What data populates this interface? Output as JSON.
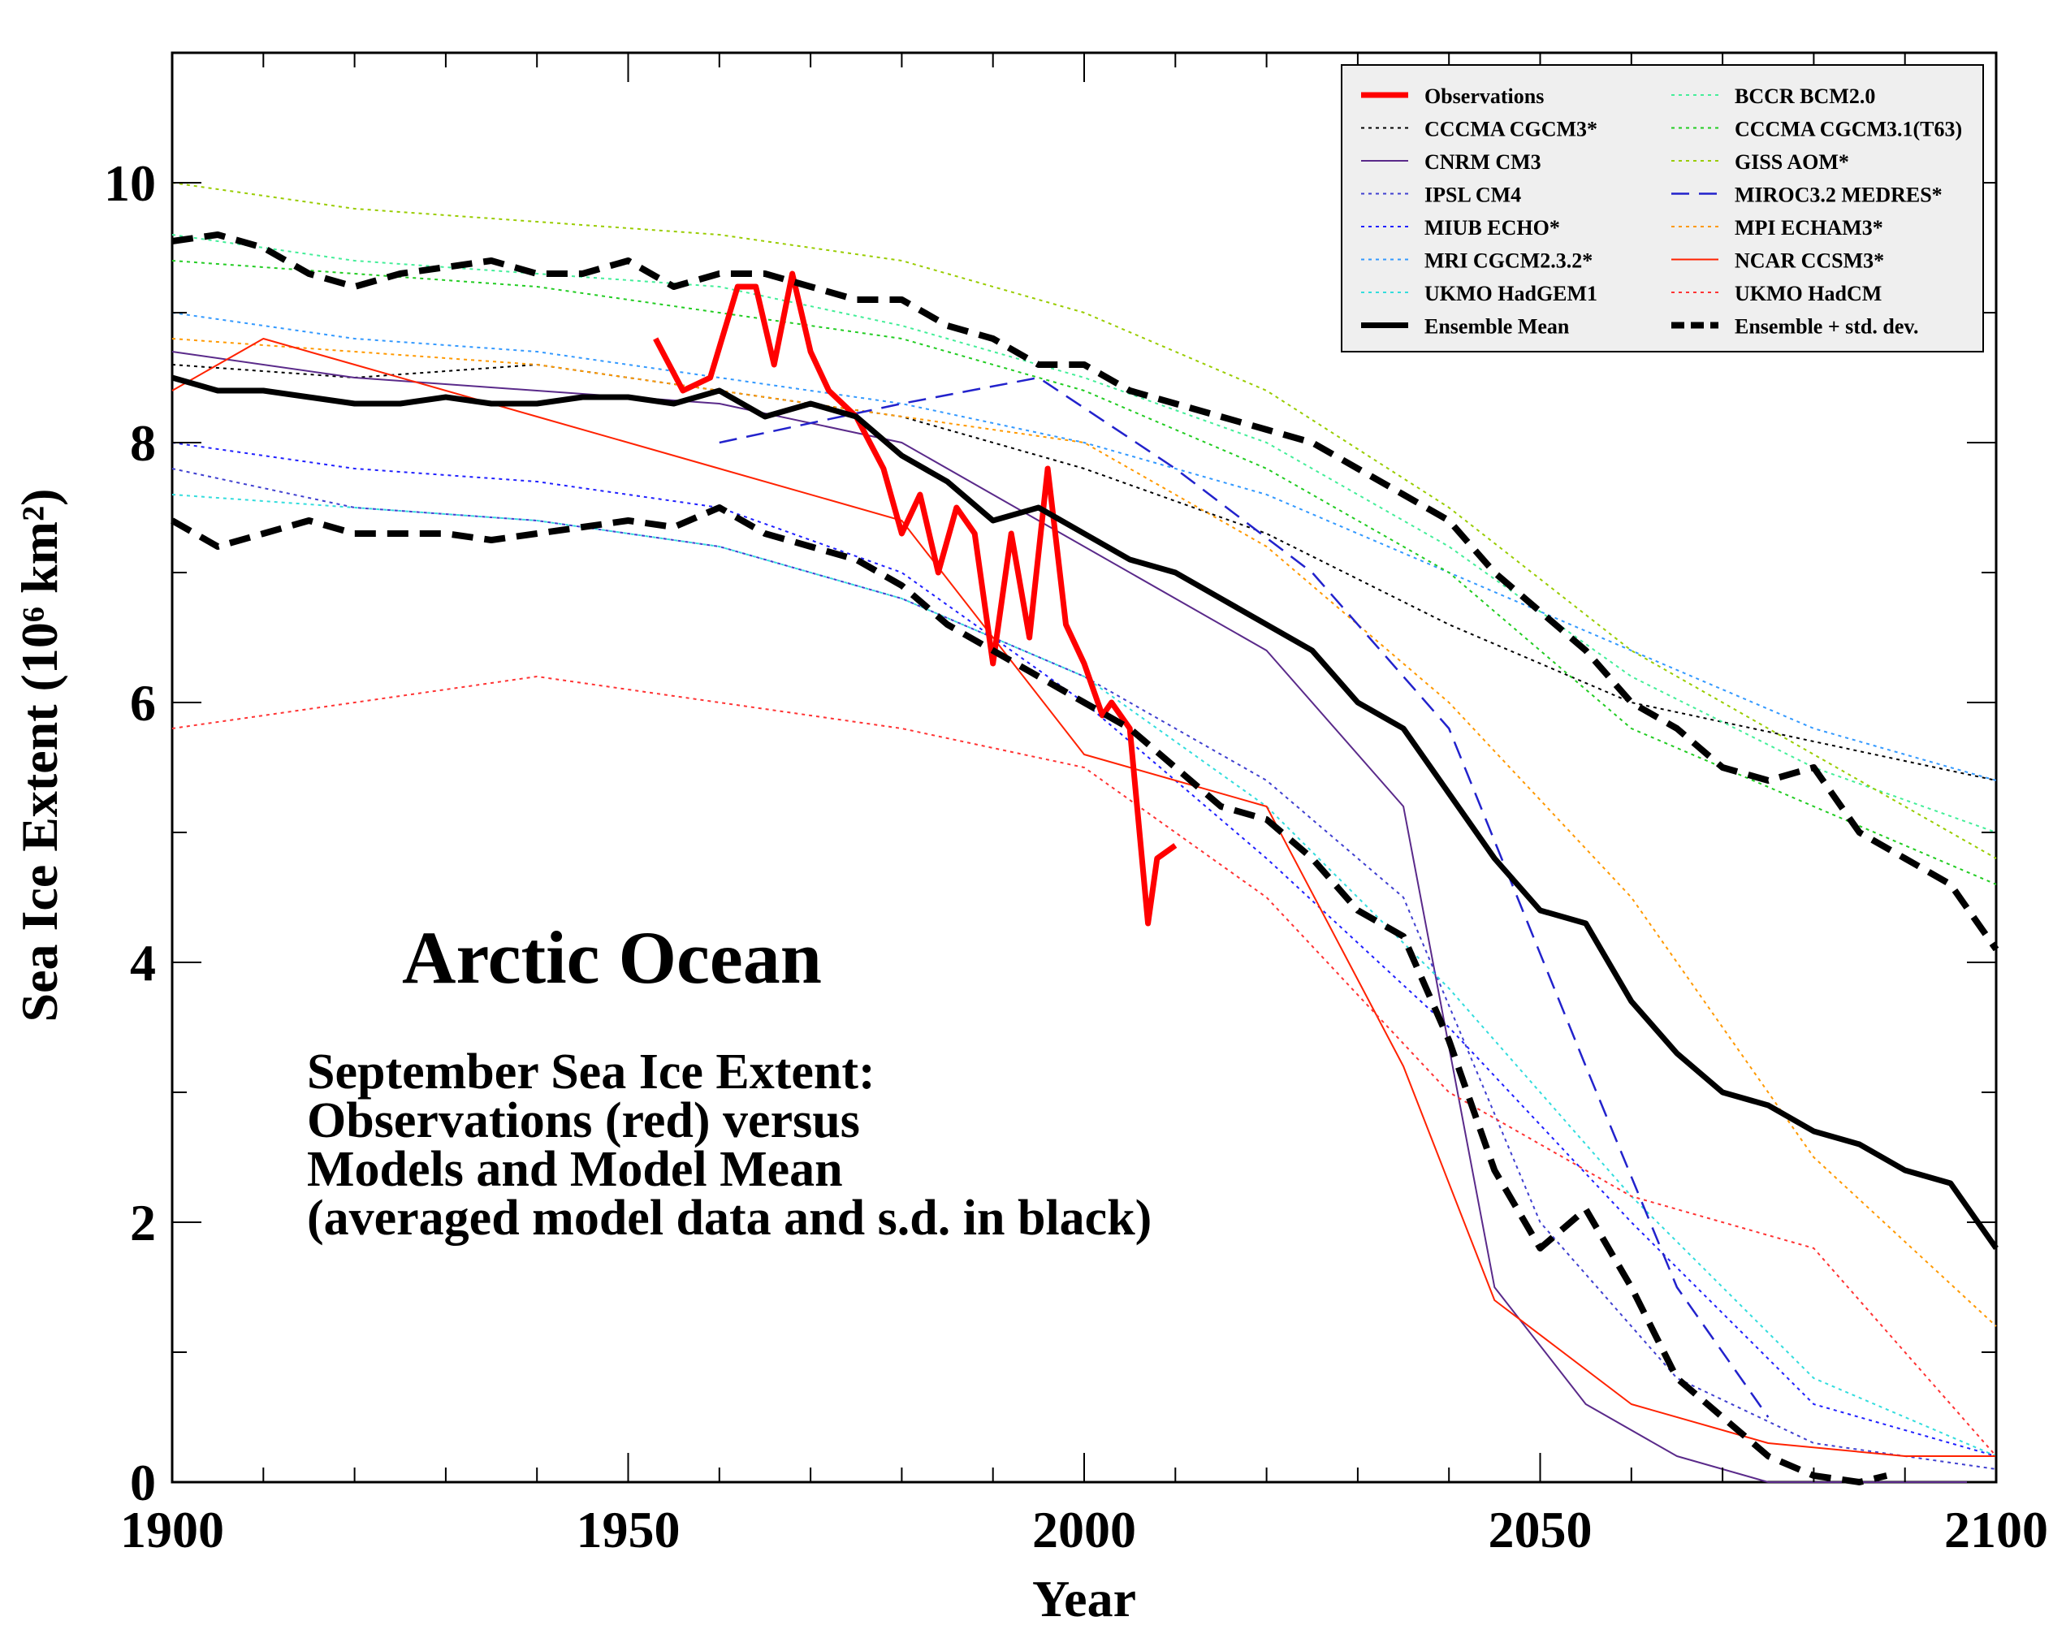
{
  "chart_data": {
    "type": "line",
    "title": "Arctic Ocean",
    "annotation_lines": [
      "September Sea Ice Extent:",
      "Observations (red) versus",
      "Models and Model Mean",
      "(averaged model data and s.d. in black)"
    ],
    "xlabel": "Year",
    "ylabel": "Sea Ice Extent (10⁶ km²)",
    "xlim": [
      1900,
      2100
    ],
    "ylim": [
      0,
      11
    ],
    "x_ticks": [
      1900,
      1950,
      2000,
      2050,
      2100
    ],
    "x_tick_labels": [
      "1900",
      "1950",
      "2000",
      "2050",
      "2100"
    ],
    "y_ticks": [
      0,
      2,
      4,
      6,
      8,
      10
    ],
    "y_tick_labels": [
      "0",
      "2",
      "4",
      "6",
      "8",
      "10"
    ],
    "grid": false,
    "legend_position": "top-right",
    "series": [
      {
        "name": "Observations",
        "color": "#ff0000",
        "style": "solid-thick",
        "x": [
          1953,
          1956,
          1959,
          1962,
          1964,
          1966,
          1968,
          1970,
          1972,
          1975,
          1978,
          1980,
          1982,
          1984,
          1986,
          1988,
          1990,
          1992,
          1994,
          1996,
          1998,
          2000,
          2002,
          2003,
          2005,
          2007,
          2008,
          2010
        ],
        "values": [
          8.8,
          8.4,
          8.5,
          9.2,
          9.2,
          8.6,
          9.3,
          8.7,
          8.4,
          8.2,
          7.8,
          7.3,
          7.6,
          7.0,
          7.5,
          7.3,
          6.3,
          7.3,
          6.5,
          7.8,
          6.6,
          6.3,
          5.9,
          6.0,
          5.8,
          4.3,
          4.8,
          4.9
        ]
      },
      {
        "name": "CCCMA CGCM3*",
        "color": "#000000",
        "style": "dotted",
        "x": [
          1900,
          1920,
          1940,
          1960,
          1980,
          2000,
          2020,
          2040,
          2060,
          2080,
          2100
        ],
        "values": [
          8.6,
          8.5,
          8.6,
          8.4,
          8.2,
          7.8,
          7.3,
          6.6,
          6.0,
          5.7,
          5.4
        ]
      },
      {
        "name": "CNRM CM3",
        "color": "#5a2a8a",
        "style": "solid-thin",
        "x": [
          1900,
          1920,
          1940,
          1960,
          1980,
          2000,
          2020,
          2035,
          2045,
          2055,
          2065,
          2075,
          2085,
          2100
        ],
        "values": [
          8.7,
          8.5,
          8.4,
          8.3,
          8.0,
          7.2,
          6.4,
          5.2,
          1.5,
          0.6,
          0.2,
          0.0,
          0.0,
          0.0
        ]
      },
      {
        "name": "IPSL CM4",
        "color": "#4040d0",
        "style": "dotted",
        "x": [
          1900,
          1920,
          1940,
          1960,
          1980,
          2000,
          2020,
          2035,
          2050,
          2065,
          2080,
          2100
        ],
        "values": [
          7.8,
          7.5,
          7.4,
          7.2,
          6.8,
          6.2,
          5.4,
          4.5,
          2.0,
          0.8,
          0.3,
          0.1
        ]
      },
      {
        "name": "MIUB ECHO*",
        "color": "#2020ff",
        "style": "dotted",
        "x": [
          1900,
          1920,
          1940,
          1960,
          1980,
          2000,
          2020,
          2040,
          2060,
          2080,
          2100
        ],
        "values": [
          8.0,
          7.8,
          7.7,
          7.5,
          7.0,
          6.0,
          4.8,
          3.5,
          2.0,
          0.6,
          0.2
        ]
      },
      {
        "name": "MRI CGCM2.3.2*",
        "color": "#3399ff",
        "style": "dotted",
        "x": [
          1900,
          1920,
          1940,
          1960,
          1980,
          2000,
          2020,
          2040,
          2060,
          2080,
          2100
        ],
        "values": [
          9.0,
          8.8,
          8.7,
          8.5,
          8.3,
          8.0,
          7.6,
          7.0,
          6.4,
          5.8,
          5.4
        ]
      },
      {
        "name": "UKMO HadGEM1",
        "color": "#33dddd",
        "style": "dotted",
        "x": [
          1900,
          1920,
          1940,
          1960,
          1980,
          2000,
          2020,
          2040,
          2060,
          2080,
          2100
        ],
        "values": [
          7.6,
          7.5,
          7.4,
          7.2,
          6.8,
          6.2,
          5.2,
          3.8,
          2.2,
          0.8,
          0.2
        ]
      },
      {
        "name": "BCCR BCM2.0",
        "color": "#44ee99",
        "style": "dotted",
        "x": [
          1900,
          1920,
          1940,
          1960,
          1980,
          2000,
          2020,
          2040,
          2060,
          2080,
          2100
        ],
        "values": [
          9.6,
          9.4,
          9.3,
          9.2,
          8.9,
          8.5,
          8.0,
          7.2,
          6.2,
          5.5,
          5.0
        ]
      },
      {
        "name": "CCCMA CGCM3.1(T63)",
        "color": "#22cc22",
        "style": "dotted",
        "x": [
          1900,
          1920,
          1940,
          1960,
          1980,
          2000,
          2020,
          2040,
          2060,
          2080,
          2100
        ],
        "values": [
          9.4,
          9.3,
          9.2,
          9.0,
          8.8,
          8.4,
          7.8,
          7.0,
          5.8,
          5.2,
          4.6
        ]
      },
      {
        "name": "GISS AOM*",
        "color": "#99cc00",
        "style": "dotted",
        "x": [
          1900,
          1920,
          1940,
          1960,
          1980,
          2000,
          2020,
          2040,
          2060,
          2080,
          2100
        ],
        "values": [
          10.0,
          9.8,
          9.7,
          9.6,
          9.4,
          9.0,
          8.4,
          7.5,
          6.4,
          5.6,
          4.8
        ]
      },
      {
        "name": "MIROC3.2 MEDRES*",
        "color": "#2222cc",
        "style": "dashed",
        "x": [
          1960,
          1980,
          1995,
          2010,
          2025,
          2040,
          2055,
          2065,
          2075
        ],
        "values": [
          8.0,
          8.3,
          8.5,
          7.8,
          7.0,
          5.8,
          3.2,
          1.5,
          0.5
        ]
      },
      {
        "name": "MPI ECHAM3*",
        "color": "#ff9900",
        "style": "dotted",
        "x": [
          1900,
          1920,
          1940,
          1960,
          1980,
          2000,
          2020,
          2040,
          2060,
          2080,
          2100
        ],
        "values": [
          8.8,
          8.7,
          8.6,
          8.4,
          8.2,
          8.0,
          7.2,
          6.0,
          4.5,
          2.5,
          1.2
        ]
      },
      {
        "name": "NCAR CCSM3*",
        "color": "#ff2200",
        "style": "solid-thin",
        "x": [
          1900,
          1910,
          1920,
          1940,
          1960,
          1980,
          2000,
          2020,
          2035,
          2045,
          2060,
          2075,
          2090,
          2100
        ],
        "values": [
          8.4,
          8.8,
          8.6,
          8.2,
          7.8,
          7.4,
          5.6,
          5.2,
          3.2,
          1.4,
          0.6,
          0.3,
          0.2,
          0.2
        ]
      },
      {
        "name": "UKMO HadCM",
        "color": "#ff3333",
        "style": "dotted",
        "x": [
          1900,
          1920,
          1940,
          1960,
          1980,
          2000,
          2020,
          2040,
          2060,
          2080,
          2100
        ],
        "values": [
          5.8,
          6.0,
          6.2,
          6.0,
          5.8,
          5.5,
          4.5,
          3.0,
          2.2,
          1.8,
          0.2
        ]
      },
      {
        "name": "Ensemble Mean",
        "color": "#000000",
        "style": "solid-thick",
        "x": [
          1900,
          1905,
          1910,
          1915,
          1920,
          1925,
          1930,
          1935,
          1940,
          1945,
          1950,
          1955,
          1960,
          1965,
          1970,
          1975,
          1980,
          1985,
          1990,
          1995,
          2000,
          2005,
          2010,
          2015,
          2020,
          2025,
          2030,
          2035,
          2040,
          2045,
          2050,
          2055,
          2060,
          2065,
          2070,
          2075,
          2080,
          2085,
          2090,
          2095,
          2100
        ],
        "values": [
          8.5,
          8.4,
          8.4,
          8.35,
          8.3,
          8.3,
          8.35,
          8.3,
          8.3,
          8.35,
          8.35,
          8.3,
          8.4,
          8.2,
          8.3,
          8.2,
          7.9,
          7.7,
          7.4,
          7.5,
          7.3,
          7.1,
          7.0,
          6.8,
          6.6,
          6.4,
          6.0,
          5.8,
          5.3,
          4.8,
          4.4,
          4.3,
          3.7,
          3.3,
          3.0,
          2.9,
          2.7,
          2.6,
          2.4,
          2.3,
          1.8
        ]
      },
      {
        "name": "Ensemble + std. dev.",
        "color": "#000000",
        "style": "dashed-thick",
        "x": [
          1900,
          1905,
          1910,
          1915,
          1920,
          1925,
          1930,
          1935,
          1940,
          1945,
          1950,
          1955,
          1960,
          1965,
          1970,
          1975,
          1980,
          1985,
          1990,
          1995,
          2000,
          2005,
          2010,
          2015,
          2020,
          2025,
          2030,
          2035,
          2040,
          2045,
          2050,
          2055,
          2060,
          2065,
          2070,
          2075,
          2080,
          2085,
          2090,
          2095,
          2100
        ],
        "values": [
          9.55,
          9.6,
          9.5,
          9.3,
          9.2,
          9.3,
          9.35,
          9.4,
          9.3,
          9.3,
          9.4,
          9.2,
          9.3,
          9.3,
          9.2,
          9.1,
          9.1,
          8.9,
          8.8,
          8.6,
          8.6,
          8.4,
          8.3,
          8.2,
          8.1,
          8.0,
          7.8,
          7.6,
          7.4,
          7.0,
          6.7,
          6.4,
          6.0,
          5.8,
          5.5,
          5.4,
          5.5,
          5.0,
          4.8,
          4.6,
          4.1
        ]
      },
      {
        "name": "Ensemble - std. dev.",
        "color": "#000000",
        "style": "dashed-thick",
        "legend": false,
        "x": [
          1900,
          1905,
          1910,
          1915,
          1920,
          1925,
          1930,
          1935,
          1940,
          1945,
          1950,
          1955,
          1960,
          1965,
          1970,
          1975,
          1980,
          1985,
          1990,
          1995,
          2000,
          2005,
          2010,
          2015,
          2020,
          2025,
          2030,
          2035,
          2040,
          2045,
          2050,
          2055,
          2060,
          2065,
          2070,
          2075,
          2080,
          2085,
          2088
        ],
        "values": [
          7.4,
          7.2,
          7.3,
          7.4,
          7.3,
          7.3,
          7.3,
          7.25,
          7.3,
          7.35,
          7.4,
          7.35,
          7.5,
          7.3,
          7.2,
          7.1,
          6.9,
          6.6,
          6.4,
          6.2,
          6.0,
          5.8,
          5.5,
          5.2,
          5.1,
          4.8,
          4.4,
          4.2,
          3.4,
          2.4,
          1.8,
          2.1,
          1.5,
          0.8,
          0.5,
          0.2,
          0.05,
          0.0,
          0.05
        ]
      }
    ]
  }
}
